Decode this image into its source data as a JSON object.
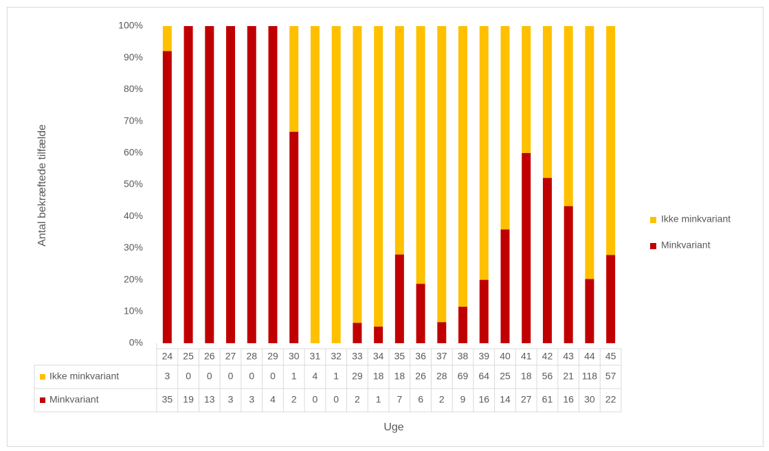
{
  "chart_data": {
    "type": "bar",
    "stacking": "percent",
    "y_axis_label": "Antal bekræftede tilfælde",
    "x_axis_label": "Uge",
    "categories": [
      "24",
      "25",
      "26",
      "27",
      "28",
      "29",
      "30",
      "31",
      "32",
      "33",
      "34",
      "35",
      "36",
      "37",
      "38",
      "39",
      "40",
      "41",
      "42",
      "43",
      "44",
      "45"
    ],
    "series": [
      {
        "name": "Ikke minkvariant",
        "color": "#ffc000",
        "values": [
          3,
          0,
          0,
          0,
          0,
          0,
          1,
          4,
          1,
          29,
          18,
          18,
          26,
          28,
          69,
          64,
          25,
          18,
          56,
          21,
          118,
          57
        ]
      },
      {
        "name": "Minkvariant",
        "color": "#c00000",
        "values": [
          35,
          19,
          13,
          3,
          3,
          4,
          2,
          0,
          0,
          2,
          1,
          7,
          6,
          2,
          9,
          16,
          14,
          27,
          61,
          16,
          30,
          22
        ]
      }
    ],
    "ylim": [
      0,
      100
    ],
    "yticks": [
      {
        "value": 0,
        "label": "0%"
      },
      {
        "value": 10,
        "label": "10%"
      },
      {
        "value": 20,
        "label": "20%"
      },
      {
        "value": 30,
        "label": "30%"
      },
      {
        "value": 40,
        "label": "40%"
      },
      {
        "value": 50,
        "label": "50%"
      },
      {
        "value": 60,
        "label": "60%"
      },
      {
        "value": 70,
        "label": "70%"
      },
      {
        "value": 80,
        "label": "80%"
      },
      {
        "value": 90,
        "label": "90%"
      },
      {
        "value": 100,
        "label": "100%"
      }
    ],
    "grid": false,
    "legend": "right",
    "data_table": true
  }
}
